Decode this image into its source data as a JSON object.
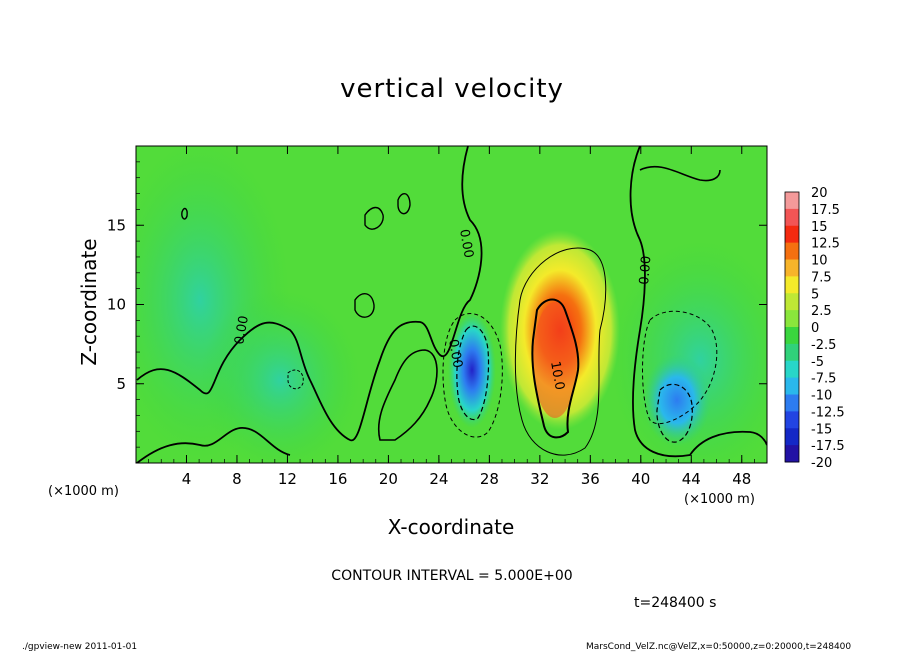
{
  "chart_data": {
    "type": "heatmap",
    "title": "vertical velocity",
    "xlabel": "X-coordinate",
    "ylabel": "Z-coordinate",
    "x_unit": "(×1000 m)",
    "x_unit_right": "(×1000 m)",
    "xlim": [
      0,
      50
    ],
    "ylim": [
      0,
      20
    ],
    "x_ticks": [
      4,
      8,
      12,
      16,
      20,
      24,
      28,
      32,
      36,
      40,
      44,
      48
    ],
    "y_ticks": [
      5,
      10,
      15
    ],
    "colorbar": {
      "labels": [
        "20",
        "17.5",
        "15",
        "12.5",
        "10",
        "7.5",
        "5",
        "2.5",
        "0",
        "-2.5",
        "-5",
        "-7.5",
        "-10",
        "-12.5",
        "-15",
        "-17.5",
        "-20"
      ],
      "colors": [
        "#f49a9a",
        "#f25555",
        "#f42a10",
        "#f57010",
        "#f7b42a",
        "#f4ea2a",
        "#bfe835",
        "#8ae63c",
        "#3ad63e",
        "#30d27a",
        "#28d6c8",
        "#2ab8ec",
        "#2d7cf0",
        "#2244e2",
        "#1428c6",
        "#2212a4",
        "#6018b4"
      ]
    },
    "contour_labels": [
      "0.00",
      "0.00",
      "0.00",
      "0.00",
      "10.0"
    ],
    "features": [
      {
        "type": "updraft",
        "x": 33,
        "z": 7,
        "peak": 15
      },
      {
        "type": "downdraft",
        "x": 26,
        "z": 6,
        "peak": -13
      },
      {
        "type": "downdraft",
        "x": 43,
        "z": 3.5,
        "peak": -9
      }
    ],
    "contour_interval": "CONTOUR INTERVAL = 5.000E+00",
    "time": "t=248400 s"
  },
  "footer": {
    "left": "./gpview-new   2011-01-01",
    "right": "MarsCond_VelZ.nc@VelZ,x=0:50000,z=0:20000,t=248400"
  }
}
